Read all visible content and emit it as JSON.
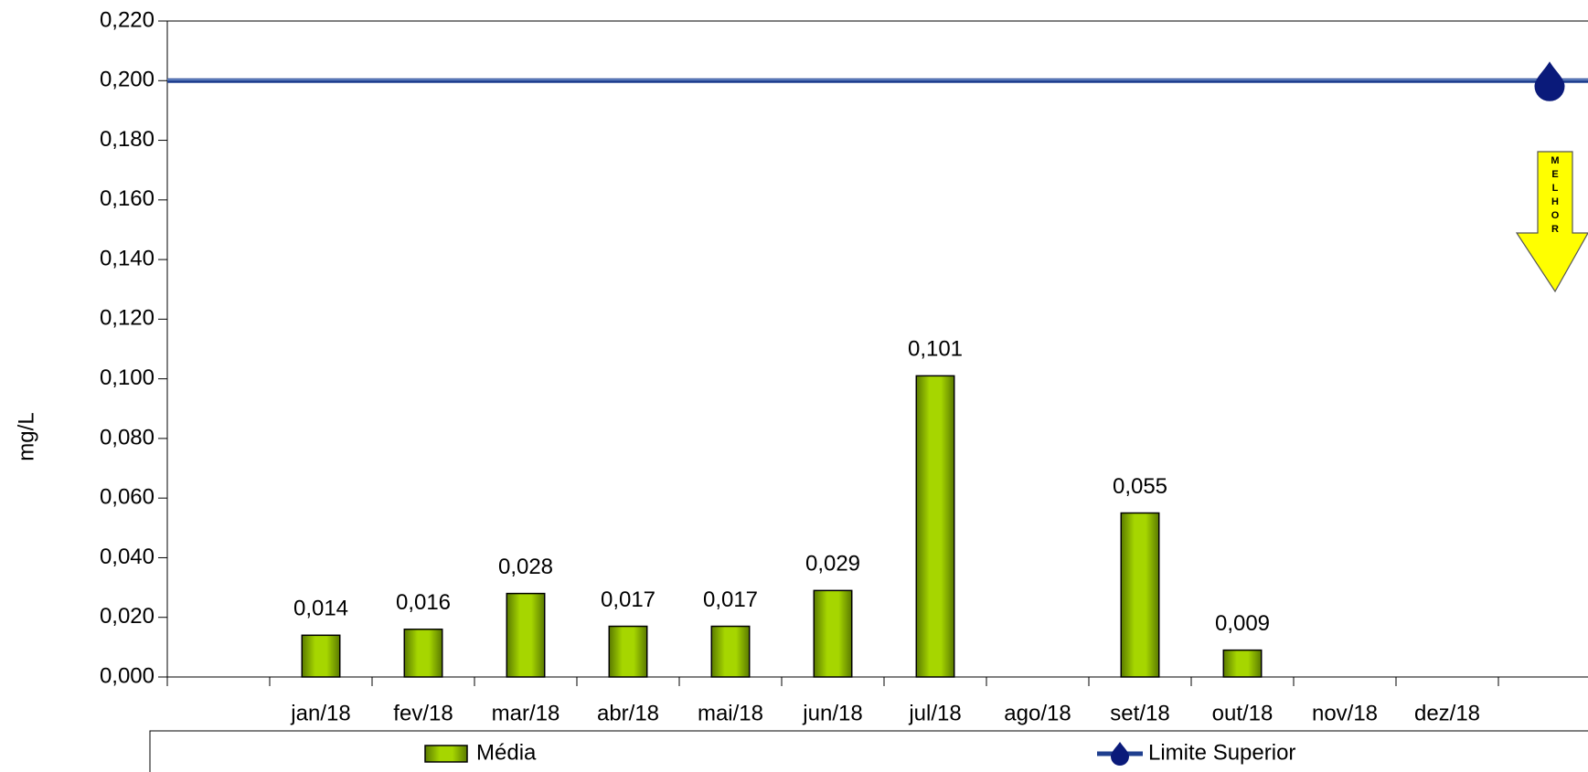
{
  "chart_data": {
    "type": "bar",
    "y_label": "mg/L",
    "annotation": "MELHOR",
    "categories": [
      null,
      "jan/18",
      "fev/18",
      "mar/18",
      "abr/18",
      "mai/18",
      "jun/18",
      "jul/18",
      "ago/18",
      "set/18",
      "out/18",
      "nov/18",
      "dez/18",
      null
    ],
    "series": [
      {
        "name": "Média",
        "type": "bar",
        "color": "#99cc00",
        "values": [
          null,
          0.014,
          0.016,
          0.028,
          0.017,
          0.017,
          0.029,
          0.101,
          null,
          0.055,
          0.009,
          null,
          null,
          null
        ],
        "value_labels": [
          null,
          "0,014",
          "0,016",
          "0,028",
          "0,017",
          "0,017",
          "0,029",
          "0,101",
          null,
          "0,055",
          "0,009",
          null,
          null,
          null
        ]
      },
      {
        "name": "Limite Superior",
        "type": "line",
        "color": "#1f3f8f",
        "values": [
          0.2,
          0.2,
          0.2,
          0.2,
          0.2,
          0.2,
          0.2,
          0.2,
          0.2,
          0.2,
          0.2,
          0.2,
          0.2,
          0.2
        ]
      }
    ],
    "ylim": [
      0,
      0.22
    ],
    "yticks": [
      {
        "value": 0,
        "label": "0,000"
      },
      {
        "value": 0.02,
        "label": "0,020"
      },
      {
        "value": 0.04,
        "label": "0,040"
      },
      {
        "value": 0.06,
        "label": "0,060"
      },
      {
        "value": 0.08,
        "label": "0,080"
      },
      {
        "value": 0.1,
        "label": "0,100"
      },
      {
        "value": 0.12,
        "label": "0,120"
      },
      {
        "value": 0.14,
        "label": "0,140"
      },
      {
        "value": 0.16,
        "label": "0,160"
      },
      {
        "value": 0.18,
        "label": "0,180"
      },
      {
        "value": 0.2,
        "label": "0,200"
      },
      {
        "value": 0.22,
        "label": "0,220"
      }
    ],
    "grid": false,
    "legend": "bottom"
  }
}
